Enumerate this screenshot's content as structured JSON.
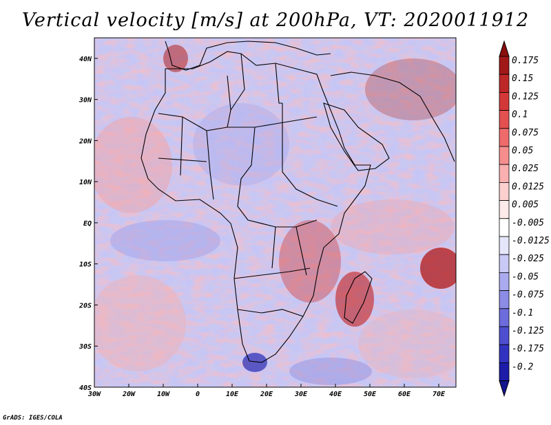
{
  "title": "Vertical velocity [m/s] at 200hPa, VT: 2020011912",
  "footer": "GrADS: IGES/COLA",
  "map": {
    "lon_range": [
      -30,
      75
    ],
    "lat_range": [
      -40,
      45
    ],
    "x_ticks": [
      {
        "lon": -30,
        "label": "30W"
      },
      {
        "lon": -20,
        "label": "20W"
      },
      {
        "lon": -10,
        "label": "10W"
      },
      {
        "lon": 0,
        "label": "0"
      },
      {
        "lon": 10,
        "label": "10E"
      },
      {
        "lon": 20,
        "label": "20E"
      },
      {
        "lon": 30,
        "label": "30E"
      },
      {
        "lon": 40,
        "label": "40E"
      },
      {
        "lon": 50,
        "label": "50E"
      },
      {
        "lon": 60,
        "label": "60E"
      },
      {
        "lon": 70,
        "label": "70E"
      }
    ],
    "y_ticks": [
      {
        "lat": 40,
        "label": "40N"
      },
      {
        "lat": 30,
        "label": "30N"
      },
      {
        "lat": 20,
        "label": "20N"
      },
      {
        "lat": 10,
        "label": "10N"
      },
      {
        "lat": 0,
        "label": "EQ"
      },
      {
        "lat": -10,
        "label": "10S"
      },
      {
        "lat": -20,
        "label": "20S"
      },
      {
        "lat": -30,
        "label": "30S"
      },
      {
        "lat": -40,
        "label": "40S"
      }
    ]
  },
  "colorbar": {
    "levels": [
      {
        "label": "0.175",
        "color": "#a11818"
      },
      {
        "label": "0.15",
        "color": "#bd2727"
      },
      {
        "label": "0.125",
        "color": "#d33838"
      },
      {
        "label": "0.1",
        "color": "#e35050"
      },
      {
        "label": "0.075",
        "color": "#ef6b6b"
      },
      {
        "label": "0.05",
        "color": "#f68e8e"
      },
      {
        "label": "0.025",
        "color": "#fab0b0"
      },
      {
        "label": "0.0125",
        "color": "#fdd0d0"
      },
      {
        "label": "0.005",
        "color": "#ffeaea"
      },
      {
        "label": "-0.005",
        "color": "#ffffff"
      },
      {
        "label": "-0.0125",
        "color": "#e6e6fb"
      },
      {
        "label": "-0.025",
        "color": "#c9c9f5"
      },
      {
        "label": "-0.05",
        "color": "#aaaaee"
      },
      {
        "label": "-0.075",
        "color": "#8c8ce6"
      },
      {
        "label": "-0.1",
        "color": "#6c6cdc"
      },
      {
        "label": "-0.125",
        "color": "#4e4ed0"
      },
      {
        "label": "-0.175",
        "color": "#3232c0"
      },
      {
        "label": "-0.2",
        "color": "#1c1ca8"
      }
    ],
    "top_color": "#8a0f0f",
    "bottom_color": "#14148f"
  }
}
